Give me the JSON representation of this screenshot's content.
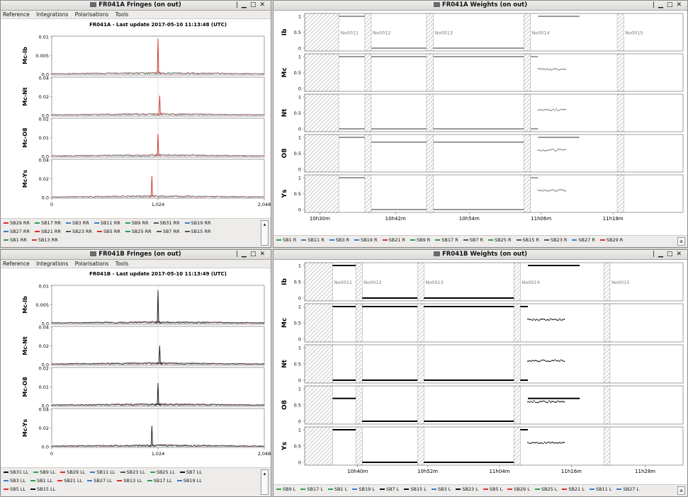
{
  "windows": [
    {
      "key": "fringes_a",
      "title": "FR041A Fringes (on out)",
      "menu": [
        "Reference",
        "Integrations",
        "Polarisations",
        "Tools"
      ],
      "plot_title": "FR041A - Last update 2017-05-10 11:13:48 (UTC)",
      "panels": [
        {
          "label": "Mc-Ib",
          "yticks": [
            "0.01",
            "0.005",
            "0.0"
          ],
          "ymax": 0.01,
          "peak_value": 0.0095,
          "peak_channel": 1024
        },
        {
          "label": "Mc-Nt",
          "yticks": [
            "0.04",
            "0.02",
            "0.0"
          ],
          "ymax": 0.04,
          "peak_value": 0.021,
          "peak_channel": 1040
        },
        {
          "label": "Mc-O8",
          "yticks": [
            "0.02",
            "0.01",
            "0.0"
          ],
          "ymax": 0.02,
          "peak_value": 0.012,
          "peak_channel": 1024
        },
        {
          "label": "Mc-Ys",
          "yticks": [
            "0.04",
            "0.02",
            "0.0"
          ],
          "ymax": 0.04,
          "peak_value": 0.023,
          "peak_channel": 965
        }
      ],
      "xticks": [
        "0",
        "1,024",
        "2,048"
      ],
      "legend_rows": [
        [
          {
            "t": "SB29 RR",
            "c": "#d7302a"
          },
          {
            "t": "SB17 RR",
            "c": "#2aa14a"
          },
          {
            "t": "SB3 RR",
            "c": "#3a7ec8"
          },
          {
            "t": "SB11 RR",
            "c": "#3a7ec8"
          },
          {
            "t": "SB9 RR",
            "c": "#2aa14a"
          },
          {
            "t": "SB31 RR",
            "c": "#555555"
          },
          {
            "t": "SB19 RR",
            "c": "#3a7ec8"
          }
        ],
        [
          {
            "t": "SB27 RR",
            "c": "#3a7ec8"
          },
          {
            "t": "SB21 RR",
            "c": "#d7302a"
          },
          {
            "t": "SB23 RR",
            "c": "#555555"
          },
          {
            "t": "SB5 RR",
            "c": "#d7302a"
          },
          {
            "t": "SB25 RR",
            "c": "#2aa14a"
          },
          {
            "t": "SB7 RR",
            "c": "#555555"
          },
          {
            "t": "SB15 RR",
            "c": "#555555"
          }
        ],
        [
          {
            "t": "SB1 RR",
            "c": "#2aa14a"
          },
          {
            "t": "SB13 RR",
            "c": "#d7302a"
          }
        ]
      ]
    },
    {
      "key": "fringes_b",
      "title": "FR041B Fringes (on out)",
      "menu": [
        "Reference",
        "Integrations",
        "Polarisations",
        "Tools"
      ],
      "plot_title": "FR041B - Last update 2017-05-10 11:13:49 (UTC)",
      "panels": [
        {
          "label": "Mc-Ib",
          "yticks": [
            "0.01",
            "0.005",
            "0.0"
          ],
          "ymax": 0.01,
          "peak_value": 0.0088,
          "peak_channel": 1024
        },
        {
          "label": "Mc-Nt",
          "yticks": [
            "0.04",
            "0.02",
            "0.0"
          ],
          "ymax": 0.04,
          "peak_value": 0.02,
          "peak_channel": 1040
        },
        {
          "label": "Mc-O8",
          "yticks": [
            "0.02",
            "0.01",
            "0.0"
          ],
          "ymax": 0.02,
          "peak_value": 0.012,
          "peak_channel": 1024
        },
        {
          "label": "Mc-Ys",
          "yticks": [
            "0.04",
            "0.02",
            "0.0"
          ],
          "ymax": 0.04,
          "peak_value": 0.022,
          "peak_channel": 965
        }
      ],
      "xticks": [
        "0",
        "1,024",
        "2,048"
      ],
      "legend_rows": [
        [
          {
            "t": "SB31 LL",
            "c": "#111111"
          },
          {
            "t": "SB9 LL",
            "c": "#2aa14a"
          },
          {
            "t": "SB29 LL",
            "c": "#d7302a"
          },
          {
            "t": "SB11 LL",
            "c": "#3a7ec8"
          },
          {
            "t": "SB23 LL",
            "c": "#555555"
          },
          {
            "t": "SB25 LL",
            "c": "#2aa14a"
          },
          {
            "t": "SB7 LL",
            "c": "#111111"
          }
        ],
        [
          {
            "t": "SB3 LL",
            "c": "#3a7ec8"
          },
          {
            "t": "SB1 LL",
            "c": "#2aa14a"
          },
          {
            "t": "SB21 LL",
            "c": "#d7302a"
          },
          {
            "t": "SB27 LL",
            "c": "#3a7ec8"
          },
          {
            "t": "SB13 LL",
            "c": "#d7302a"
          },
          {
            "t": "SB17 LL",
            "c": "#2aa14a"
          },
          {
            "t": "SB19 LL",
            "c": "#3a7ec8"
          }
        ],
        [
          {
            "t": "SB5 LL",
            "c": "#d7302a"
          },
          {
            "t": "SB15 LL",
            "c": "#111111"
          }
        ]
      ]
    },
    {
      "key": "weights_a",
      "title": "FR041A Weights (on out)",
      "panels": [
        "Ib",
        "Mc",
        "Nt",
        "O8",
        "Ys"
      ],
      "yticks": [
        "1",
        "0.5",
        "0"
      ],
      "scans": [
        "No0011",
        "No0012",
        "No0013",
        "No0014",
        "No0015"
      ],
      "xticks": [
        "10h30m",
        "10h42m",
        "10h54m",
        "11h06m",
        "11h18m"
      ],
      "legend": [
        {
          "t": "SB1 R",
          "c": "#2aa14a"
        },
        {
          "t": "SB11 R",
          "c": "#3a7ec8"
        },
        {
          "t": "SB3 R",
          "c": "#3a7ec8"
        },
        {
          "t": "SB19 R",
          "c": "#3a7ec8"
        },
        {
          "t": "SB21 R",
          "c": "#d7302a"
        },
        {
          "t": "SB9 R",
          "c": "#2aa14a"
        },
        {
          "t": "SB17 R",
          "c": "#2aa14a"
        },
        {
          "t": "SB7 R",
          "c": "#555555"
        },
        {
          "t": "SB25 R",
          "c": "#2aa14a"
        },
        {
          "t": "SB15 R",
          "c": "#555555"
        },
        {
          "t": "SB23 R",
          "c": "#555555"
        },
        {
          "t": "SB27 R",
          "c": "#3a7ec8"
        },
        {
          "t": "SB29 R",
          "c": "#d7302a"
        }
      ]
    },
    {
      "key": "weights_b",
      "title": "FR041B Weights (on out)",
      "panels": [
        "Ib",
        "Mc",
        "Nt",
        "O8",
        "Ys"
      ],
      "yticks": [
        "1",
        "0.5",
        "0"
      ],
      "scans": [
        "No0011",
        "No0012",
        "No0013",
        "No0014",
        "No0015"
      ],
      "xticks": [
        "10h40m",
        "10h52m",
        "11h04m",
        "11h16m",
        "11h28m"
      ],
      "legend": [
        {
          "t": "SB9 L",
          "c": "#2aa14a"
        },
        {
          "t": "SB17 L",
          "c": "#2aa14a"
        },
        {
          "t": "SB1 L",
          "c": "#2aa14a"
        },
        {
          "t": "SB19 L",
          "c": "#3a7ec8"
        },
        {
          "t": "SB7 L",
          "c": "#111111"
        },
        {
          "t": "SB15 L",
          "c": "#111111"
        },
        {
          "t": "SB3 L",
          "c": "#3a7ec8"
        },
        {
          "t": "SB23 L",
          "c": "#111111"
        },
        {
          "t": "SB5 L",
          "c": "#d7302a"
        },
        {
          "t": "SB29 L",
          "c": "#d7302a"
        },
        {
          "t": "SB25 L",
          "c": "#2aa14a"
        },
        {
          "t": "SB21 L",
          "c": "#d7302a"
        },
        {
          "t": "SB11 L",
          "c": "#3a7ec8"
        },
        {
          "t": "SB27 L",
          "c": "#3a7ec8"
        }
      ]
    }
  ],
  "chart_data": [
    {
      "type": "line",
      "title": "FR041A - Last update 2017-05-10 11:13:48 (UTC)",
      "x_range": [
        0,
        2048
      ],
      "series": [
        {
          "name": "Mc-Ib",
          "peak_channel": 1024,
          "peak": 0.0095,
          "ylim": [
            0,
            0.01
          ]
        },
        {
          "name": "Mc-Nt",
          "peak_channel": 1040,
          "peak": 0.021,
          "ylim": [
            0,
            0.04
          ]
        },
        {
          "name": "Mc-O8",
          "peak_channel": 1024,
          "peak": 0.012,
          "ylim": [
            0,
            0.02
          ]
        },
        {
          "name": "Mc-Ys",
          "peak_channel": 965,
          "peak": 0.023,
          "ylim": [
            0,
            0.04
          ]
        }
      ]
    },
    {
      "type": "line",
      "title": "FR041B - Last update 2017-05-10 11:13:49 (UTC)",
      "x_range": [
        0,
        2048
      ],
      "series": [
        {
          "name": "Mc-Ib",
          "peak_channel": 1024,
          "peak": 0.0088,
          "ylim": [
            0,
            0.01
          ]
        },
        {
          "name": "Mc-Nt",
          "peak_channel": 1040,
          "peak": 0.02,
          "ylim": [
            0,
            0.04
          ]
        },
        {
          "name": "Mc-O8",
          "peak_channel": 1024,
          "peak": 0.012,
          "ylim": [
            0,
            0.02
          ]
        },
        {
          "name": "Mc-Ys",
          "peak_channel": 965,
          "peak": 0.022,
          "ylim": [
            0,
            0.04
          ]
        }
      ]
    }
  ]
}
